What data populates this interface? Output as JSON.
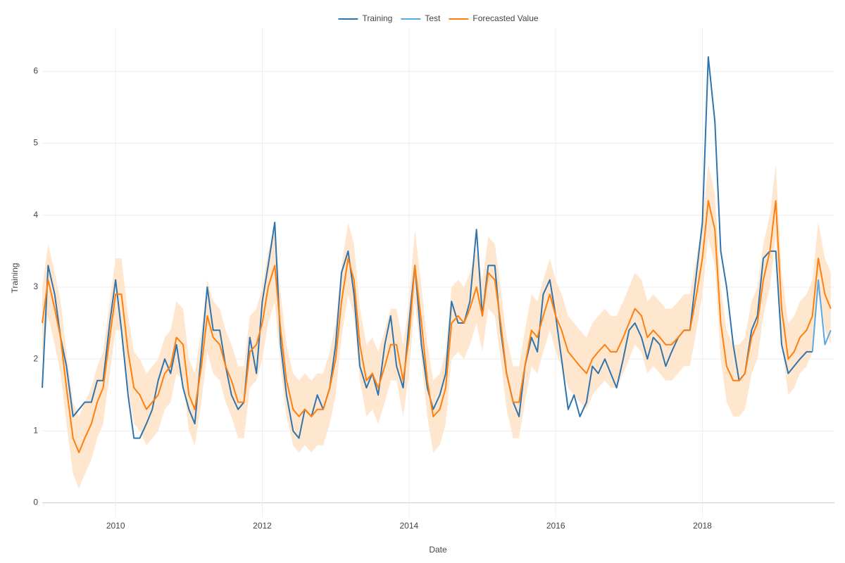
{
  "chart_data": {
    "type": "line",
    "x_label": "Date",
    "y_label": "Training",
    "xlim": [
      2009,
      2019.8
    ],
    "xticks": [
      2010,
      2012,
      2014,
      2016,
      2018
    ],
    "ylim": [
      -0.2,
      6.6
    ],
    "yticks": [
      0,
      1,
      2,
      3,
      4,
      5,
      6
    ],
    "grid": true,
    "legend": "top",
    "x": [
      2009,
      2009.08,
      2009.17,
      2009.25,
      2009.33,
      2009.42,
      2009.5,
      2009.58,
      2009.67,
      2009.75,
      2009.83,
      2009.92,
      2010,
      2010.08,
      2010.17,
      2010.25,
      2010.33,
      2010.42,
      2010.5,
      2010.58,
      2010.67,
      2010.75,
      2010.83,
      2010.92,
      2011,
      2011.08,
      2011.17,
      2011.25,
      2011.33,
      2011.42,
      2011.5,
      2011.58,
      2011.67,
      2011.75,
      2011.83,
      2011.92,
      2012,
      2012.08,
      2012.17,
      2012.25,
      2012.33,
      2012.42,
      2012.5,
      2012.58,
      2012.67,
      2012.75,
      2012.83,
      2012.92,
      2013,
      2013.08,
      2013.17,
      2013.25,
      2013.33,
      2013.42,
      2013.5,
      2013.58,
      2013.67,
      2013.75,
      2013.83,
      2013.92,
      2014,
      2014.08,
      2014.17,
      2014.25,
      2014.33,
      2014.42,
      2014.5,
      2014.58,
      2014.67,
      2014.75,
      2014.83,
      2014.92,
      2015,
      2015.08,
      2015.17,
      2015.25,
      2015.33,
      2015.42,
      2015.5,
      2015.58,
      2015.67,
      2015.75,
      2015.83,
      2015.92,
      2016,
      2016.08,
      2016.17,
      2016.25,
      2016.33,
      2016.42,
      2016.5,
      2016.58,
      2016.67,
      2016.75,
      2016.83,
      2016.92,
      2017,
      2017.08,
      2017.17,
      2017.25,
      2017.33,
      2017.42,
      2017.5,
      2017.58,
      2017.67,
      2017.75,
      2017.83,
      2017.92,
      2018,
      2018.08,
      2018.17,
      2018.25,
      2018.33,
      2018.42,
      2018.5,
      2018.58,
      2018.67,
      2018.75,
      2018.83,
      2018.92,
      2019,
      2019.08,
      2019.17,
      2019.25,
      2019.33,
      2019.42,
      2019.5,
      2019.58,
      2019.67,
      2019.75
    ],
    "series": [
      {
        "name": "Training",
        "color": "#2f74ac",
        "values": [
          1.6,
          3.3,
          2.9,
          2.3,
          1.9,
          1.2,
          1.3,
          1.4,
          1.4,
          1.7,
          1.7,
          2.5,
          3.1,
          2.4,
          1.5,
          0.9,
          0.9,
          1.1,
          1.3,
          1.7,
          2.0,
          1.8,
          2.2,
          1.6,
          1.3,
          1.1,
          2.1,
          3.0,
          2.4,
          2.4,
          1.9,
          1.5,
          1.3,
          1.4,
          2.3,
          1.8,
          2.8,
          3.3,
          3.9,
          2.2,
          1.5,
          1.0,
          0.9,
          1.3,
          1.2,
          1.5,
          1.3,
          1.6,
          2.2,
          3.2,
          3.5,
          2.9,
          1.9,
          1.6,
          1.8,
          1.5,
          2.2,
          2.6,
          1.9,
          1.6,
          2.5,
          3.3,
          2.2,
          1.6,
          1.3,
          1.5,
          1.8,
          2.8,
          2.5,
          2.5,
          2.8,
          3.8,
          2.6,
          3.3,
          3.3,
          2.4,
          1.8,
          1.4,
          1.2,
          1.9,
          2.3,
          2.1,
          2.9,
          3.1,
          2.6,
          2.0,
          1.3,
          1.5,
          1.2,
          1.4,
          1.9,
          1.8,
          2.0,
          1.8,
          1.6,
          2.0,
          2.4,
          2.5,
          2.3,
          2.0,
          2.3,
          2.2,
          1.9,
          2.1,
          2.3,
          2.4,
          2.4,
          3.2,
          3.9,
          6.2,
          5.3,
          3.5,
          3.0,
          2.2,
          1.7,
          1.8,
          2.4,
          2.6,
          3.4,
          3.5,
          3.5,
          2.2,
          1.8,
          1.9,
          2.0,
          2.1,
          2.1,
          null,
          null,
          null
        ]
      },
      {
        "name": "Test",
        "color": "#5aa9e0",
        "values": [
          null,
          null,
          null,
          null,
          null,
          null,
          null,
          null,
          null,
          null,
          null,
          null,
          null,
          null,
          null,
          null,
          null,
          null,
          null,
          null,
          null,
          null,
          null,
          null,
          null,
          null,
          null,
          null,
          null,
          null,
          null,
          null,
          null,
          null,
          null,
          null,
          null,
          null,
          null,
          null,
          null,
          null,
          null,
          null,
          null,
          null,
          null,
          null,
          null,
          null,
          null,
          null,
          null,
          null,
          null,
          null,
          null,
          null,
          null,
          null,
          null,
          null,
          null,
          null,
          null,
          null,
          null,
          null,
          null,
          null,
          null,
          null,
          null,
          null,
          null,
          null,
          null,
          null,
          null,
          null,
          null,
          null,
          null,
          null,
          null,
          null,
          null,
          null,
          null,
          null,
          null,
          null,
          null,
          null,
          null,
          null,
          null,
          null,
          null,
          null,
          null,
          null,
          null,
          null,
          null,
          null,
          null,
          null,
          null,
          null,
          null,
          null,
          null,
          null,
          null,
          null,
          null,
          null,
          null,
          null,
          null,
          null,
          null,
          null,
          null,
          null,
          2.1,
          3.1,
          2.2,
          2.4
        ]
      },
      {
        "name": "Forecasted Value",
        "color": "#ff7f0e",
        "values": [
          2.5,
          3.1,
          2.7,
          2.3,
          1.6,
          0.9,
          0.7,
          0.9,
          1.1,
          1.4,
          1.6,
          2.3,
          2.9,
          2.9,
          2.1,
          1.6,
          1.5,
          1.3,
          1.4,
          1.5,
          1.8,
          1.9,
          2.3,
          2.2,
          1.5,
          1.3,
          1.9,
          2.6,
          2.3,
          2.2,
          1.9,
          1.7,
          1.4,
          1.4,
          2.1,
          2.2,
          2.5,
          3.0,
          3.3,
          2.4,
          1.7,
          1.3,
          1.2,
          1.3,
          1.2,
          1.3,
          1.3,
          1.6,
          2.0,
          2.8,
          3.4,
          3.1,
          2.2,
          1.7,
          1.8,
          1.6,
          1.9,
          2.2,
          2.2,
          1.7,
          2.3,
          3.3,
          2.5,
          1.7,
          1.2,
          1.3,
          1.6,
          2.5,
          2.6,
          2.5,
          2.7,
          3.0,
          2.6,
          3.2,
          3.1,
          2.5,
          1.8,
          1.4,
          1.4,
          1.9,
          2.4,
          2.3,
          2.6,
          2.9,
          2.6,
          2.4,
          2.1,
          2.0,
          1.9,
          1.8,
          2.0,
          2.1,
          2.2,
          2.1,
          2.1,
          2.3,
          2.5,
          2.7,
          2.6,
          2.3,
          2.4,
          2.3,
          2.2,
          2.2,
          2.3,
          2.4,
          2.4,
          2.9,
          3.4,
          4.2,
          3.8,
          2.5,
          1.9,
          1.7,
          1.7,
          1.8,
          2.3,
          2.5,
          3.1,
          3.5,
          4.2,
          2.7,
          2.0,
          2.1,
          2.3,
          2.4,
          2.6,
          3.4,
          2.9,
          2.7
        ]
      }
    ],
    "band": {
      "color": "#ffe3c9",
      "lower": [
        2.0,
        2.6,
        2.2,
        1.8,
        1.1,
        0.4,
        0.2,
        0.4,
        0.6,
        0.9,
        1.1,
        1.8,
        2.4,
        2.4,
        1.6,
        1.1,
        1.0,
        0.8,
        0.9,
        1.0,
        1.3,
        1.4,
        1.8,
        1.7,
        1.0,
        0.8,
        1.4,
        2.1,
        1.8,
        1.7,
        1.4,
        1.2,
        0.9,
        0.9,
        1.6,
        1.7,
        2.0,
        2.5,
        2.8,
        1.9,
        1.2,
        0.8,
        0.7,
        0.8,
        0.7,
        0.8,
        0.8,
        1.1,
        1.5,
        2.3,
        2.9,
        2.6,
        1.7,
        1.2,
        1.3,
        1.1,
        1.4,
        1.7,
        1.7,
        1.2,
        1.8,
        2.8,
        2.0,
        1.2,
        0.7,
        0.8,
        1.1,
        2.0,
        2.1,
        2.0,
        2.2,
        2.5,
        2.1,
        2.7,
        2.6,
        2.0,
        1.3,
        0.9,
        0.9,
        1.4,
        1.9,
        1.8,
        2.1,
        2.4,
        2.1,
        1.9,
        1.6,
        1.5,
        1.4,
        1.3,
        1.5,
        1.6,
        1.7,
        1.6,
        1.6,
        1.8,
        2.0,
        2.2,
        2.1,
        1.8,
        1.9,
        1.8,
        1.7,
        1.7,
        1.8,
        1.9,
        1.9,
        2.4,
        2.9,
        3.7,
        3.3,
        2.0,
        1.4,
        1.2,
        1.2,
        1.3,
        1.8,
        2.0,
        2.6,
        3.0,
        3.7,
        2.2,
        1.5,
        1.6,
        1.8,
        1.9,
        2.1,
        2.9,
        2.4,
        2.2
      ],
      "upper": [
        3.0,
        3.6,
        3.2,
        2.8,
        2.1,
        1.4,
        1.2,
        1.4,
        1.6,
        1.9,
        2.1,
        2.8,
        3.4,
        3.4,
        2.6,
        2.1,
        2.0,
        1.8,
        1.9,
        2.0,
        2.3,
        2.4,
        2.8,
        2.7,
        2.0,
        1.8,
        2.4,
        3.1,
        2.8,
        2.7,
        2.4,
        2.2,
        1.9,
        1.9,
        2.6,
        2.7,
        3.0,
        3.5,
        3.8,
        2.9,
        2.2,
        1.8,
        1.7,
        1.8,
        1.7,
        1.8,
        1.8,
        2.1,
        2.5,
        3.3,
        3.9,
        3.6,
        2.7,
        2.2,
        2.3,
        2.1,
        2.4,
        2.7,
        2.7,
        2.2,
        2.8,
        3.8,
        3.0,
        2.2,
        1.7,
        1.8,
        2.1,
        3.0,
        3.1,
        3.0,
        3.2,
        3.5,
        3.1,
        3.7,
        3.6,
        3.0,
        2.3,
        1.9,
        1.9,
        2.4,
        2.9,
        2.8,
        3.1,
        3.4,
        3.1,
        2.9,
        2.6,
        2.5,
        2.4,
        2.3,
        2.5,
        2.6,
        2.7,
        2.6,
        2.6,
        2.8,
        3.0,
        3.2,
        3.1,
        2.8,
        2.9,
        2.8,
        2.7,
        2.7,
        2.8,
        2.9,
        2.9,
        3.4,
        3.9,
        4.7,
        4.3,
        3.0,
        2.4,
        2.2,
        2.2,
        2.3,
        2.8,
        3.0,
        3.6,
        4.0,
        4.7,
        3.2,
        2.5,
        2.6,
        2.8,
        2.9,
        3.1,
        3.9,
        3.4,
        3.2
      ]
    }
  }
}
